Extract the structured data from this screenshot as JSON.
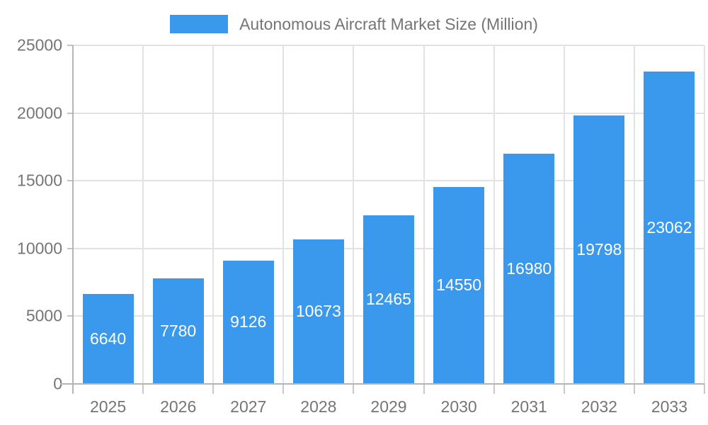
{
  "legend": {
    "label": "Autonomous Aircraft Market Size (Million)"
  },
  "chart_data": {
    "type": "bar",
    "title": "Autonomous Aircraft Market Size (Million)",
    "series_name": "Autonomous Aircraft Market Size (Million)",
    "categories": [
      "2025",
      "2026",
      "2027",
      "2028",
      "2029",
      "2030",
      "2031",
      "2032",
      "2033"
    ],
    "values": [
      6640,
      7780,
      9126,
      10673,
      12465,
      14550,
      16980,
      19798,
      23062
    ],
    "xlabel": "",
    "ylabel": "",
    "ylim": [
      0,
      25000
    ],
    "yticks": [
      0,
      5000,
      10000,
      15000,
      20000,
      25000
    ],
    "grid": true,
    "legend_position": "top-center",
    "colors": {
      "bar": "#3b99ed",
      "value_label": "#ffffff",
      "axis_text": "#757575",
      "gridline": "#e2e2e2",
      "axis_line": "#b5b5b5"
    }
  }
}
